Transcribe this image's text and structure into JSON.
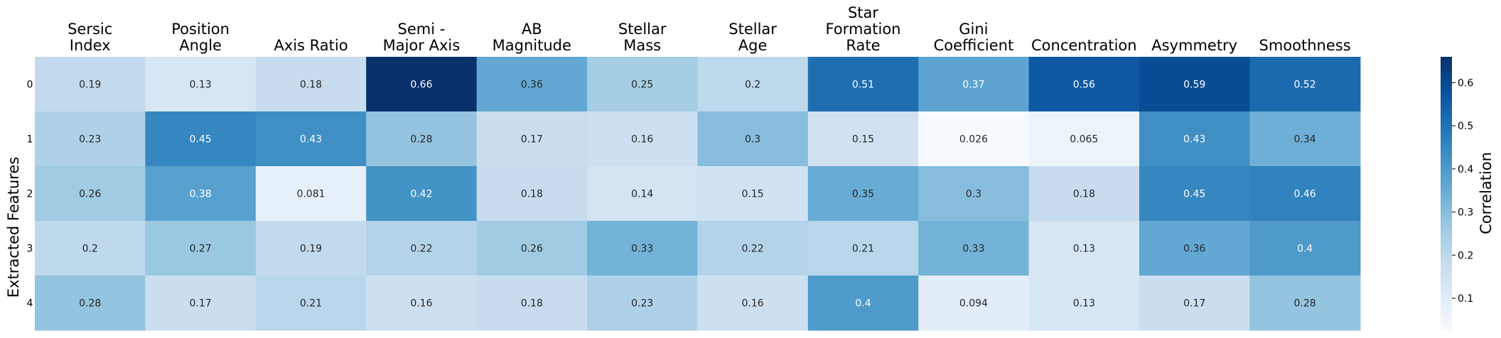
{
  "chart_data": {
    "type": "heatmap",
    "columns": [
      [
        "Sersic",
        "Index"
      ],
      [
        "Position",
        "Angle"
      ],
      [
        "Axis Ratio"
      ],
      [
        "Semi -",
        "Major Axis"
      ],
      [
        "AB",
        "Magnitude"
      ],
      [
        "Stellar",
        "Mass"
      ],
      [
        "Stellar",
        "Age"
      ],
      [
        "Star",
        "Formation",
        "Rate"
      ],
      [
        "Gini",
        "Coefficient"
      ],
      [
        "Concentration"
      ],
      [
        "Asymmetry"
      ],
      [
        "Smoothness"
      ]
    ],
    "rows": [
      "0",
      "1",
      "2",
      "3",
      "4"
    ],
    "values": [
      [
        0.19,
        0.13,
        0.18,
        0.66,
        0.36,
        0.25,
        0.2,
        0.51,
        0.37,
        0.56,
        0.59,
        0.52
      ],
      [
        0.23,
        0.45,
        0.43,
        0.28,
        0.17,
        0.16,
        0.3,
        0.15,
        0.026,
        0.065,
        0.43,
        0.34
      ],
      [
        0.26,
        0.38,
        0.081,
        0.42,
        0.18,
        0.14,
        0.15,
        0.35,
        0.3,
        0.18,
        0.45,
        0.46
      ],
      [
        0.2,
        0.27,
        0.19,
        0.22,
        0.26,
        0.33,
        0.22,
        0.21,
        0.33,
        0.13,
        0.36,
        0.4
      ],
      [
        0.28,
        0.17,
        0.21,
        0.16,
        0.18,
        0.23,
        0.16,
        0.4,
        0.094,
        0.13,
        0.17,
        0.28
      ]
    ],
    "cell_labels": [
      [
        "0.19",
        "0.13",
        "0.18",
        "0.66",
        "0.36",
        "0.25",
        "0.2",
        "0.51",
        "0.37",
        "0.56",
        "0.59",
        "0.52"
      ],
      [
        "0.23",
        "0.45",
        "0.43",
        "0.28",
        "0.17",
        "0.16",
        "0.3",
        "0.15",
        "0.026",
        "0.065",
        "0.43",
        "0.34"
      ],
      [
        "0.26",
        "0.38",
        "0.081",
        "0.42",
        "0.18",
        "0.14",
        "0.15",
        "0.35",
        "0.3",
        "0.18",
        "0.45",
        "0.46"
      ],
      [
        "0.2",
        "0.27",
        "0.19",
        "0.22",
        "0.26",
        "0.33",
        "0.22",
        "0.21",
        "0.33",
        "0.13",
        "0.36",
        "0.4"
      ],
      [
        "0.28",
        "0.17",
        "0.21",
        "0.16",
        "0.18",
        "0.23",
        "0.16",
        "0.4",
        "0.094",
        "0.13",
        "0.17",
        "0.28"
      ]
    ],
    "ylabel": "Extracted Features",
    "colorbar": {
      "label": "Correlation",
      "range": [
        0.026,
        0.66
      ],
      "ticks": [
        "0.1",
        "0.2",
        "0.3",
        "0.4",
        "0.5",
        "0.6"
      ],
      "colormap": "Blues",
      "colors": [
        "#f7fbff",
        "#deebf7",
        "#c6dbef",
        "#9ecae1",
        "#6baed6",
        "#4292c6",
        "#2171b5",
        "#08519c",
        "#08306b"
      ]
    },
    "legend_position": "right",
    "grid": false
  }
}
